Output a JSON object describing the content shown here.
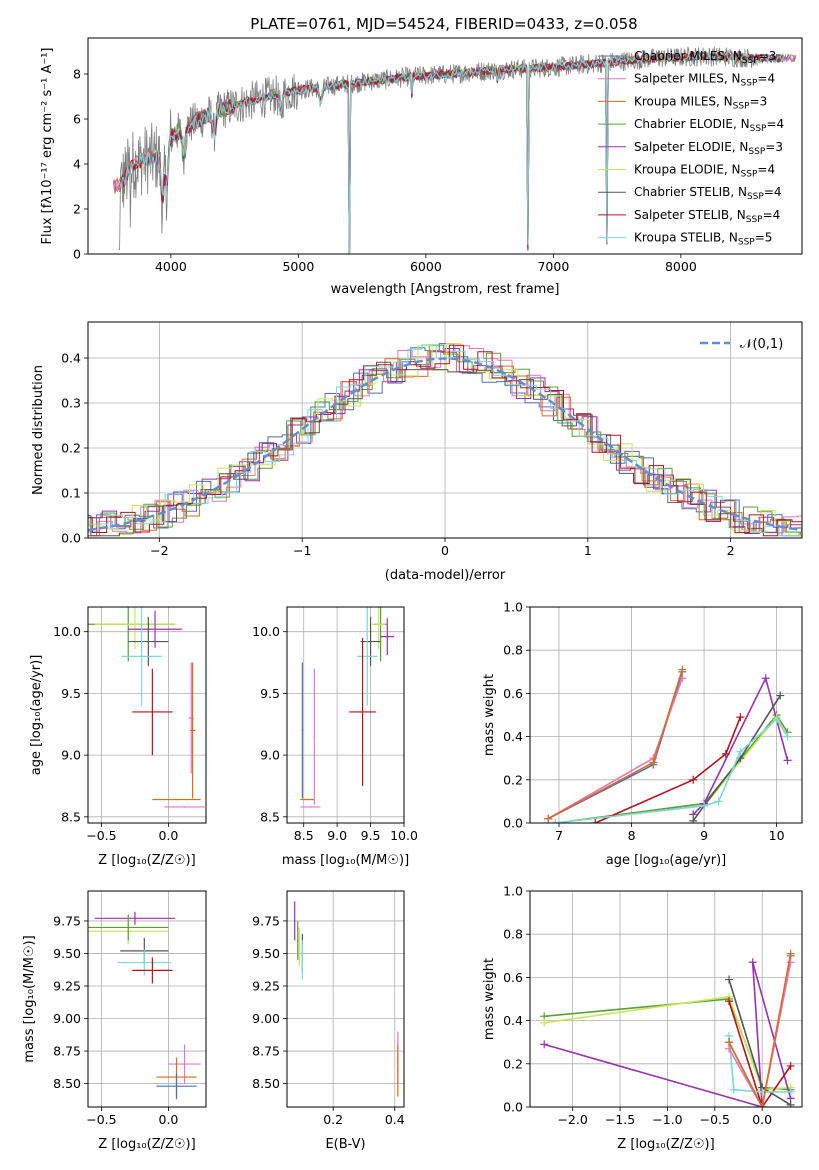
{
  "figure_title": "PLATE=0761, MJD=54524, FIBERID=0433, z=0.058",
  "colors": {
    "Chabrier MILES": "#4c72b0",
    "Salpeter MILES": "#e377c2",
    "Kroupa MILES": "#dd6b20",
    "Chabrier ELODIE": "#5a9e3a",
    "Salpeter ELODIE": "#9b30b0",
    "Kroupa ELODIE": "#c8e65a",
    "Chabrier STELIB": "#555555",
    "Salpeter STELIB": "#b5121b",
    "Kroupa STELIB": "#7fd8d8",
    "data": "#808080",
    "normal": "#5b8fd6"
  },
  "chart_data": [
    {
      "id": "spectrum",
      "type": "line",
      "title": "PLATE=0761, MJD=54524, FIBERID=0433, z=0.058",
      "xlabel": "wavelength [Angstrom, rest frame]",
      "ylabel": "Flux [f_λ 10^-17 erg cm^-2 s^-1 A^-1]",
      "xlim": [
        3350,
        8950
      ],
      "ylim": [
        0,
        9.6
      ],
      "xticks": [
        4000,
        5000,
        6000,
        7000,
        8000
      ],
      "yticks": [
        0,
        2,
        4,
        6,
        8
      ],
      "legend": [
        "Chabrier MILES, N_SSP=3",
        "Salpeter MILES, N_SSP=4",
        "Kroupa MILES, N_SSP=3",
        "Chabrier ELODIE, N_SSP=4",
        "Salpeter ELODIE, N_SSP=3",
        "Kroupa ELODIE, N_SSP=4",
        "Chabrier STELIB, N_SSP=4",
        "Salpeter STELIB, N_SSP=4",
        "Kroupa STELIB, N_SSP=5"
      ],
      "legend_placement": "right",
      "series_anchors": {
        "x": [
          3600,
          3700,
          3800,
          3900,
          4000,
          4100,
          4300,
          4500,
          4700,
          5000,
          5300,
          5600,
          5900,
          6200,
          6600,
          7000,
          7400,
          7800,
          8200,
          8600
        ],
        "y": [
          3.0,
          4.0,
          4.2,
          4.3,
          5.2,
          5.6,
          6.2,
          6.6,
          6.9,
          7.3,
          7.5,
          7.7,
          7.9,
          8.0,
          8.2,
          8.3,
          8.5,
          8.7,
          8.8,
          8.7
        ]
      }
    },
    {
      "id": "residuals",
      "type": "step",
      "xlabel": "(data-model)/error",
      "ylabel": "Normed distribution",
      "xlim": [
        -2.5,
        2.5
      ],
      "ylim": [
        0,
        0.48
      ],
      "xticks": [
        -2,
        -1,
        0,
        1,
        2
      ],
      "yticks": [
        0.0,
        0.1,
        0.2,
        0.3,
        0.4
      ],
      "grid": true,
      "legend": [
        "𝒩(0,1)"
      ],
      "legend_placement": "top-right",
      "bin_width": 0.1
    },
    {
      "id": "age_vs_Z",
      "type": "errorbar",
      "xlabel": "Z [log10(Z/Z☉)]",
      "ylabel": "age  [log10(age/yr)]",
      "xlim": [
        -0.6,
        0.28
      ],
      "ylim": [
        8.45,
        10.2
      ],
      "xticks": [
        -0.5,
        0.0
      ],
      "yticks": [
        8.5,
        9.0,
        9.5,
        10.0
      ],
      "grid": true,
      "points": [
        {
          "series": "Chabrier ELODIE",
          "x": -0.3,
          "y": 10.06,
          "xerr": 0.35,
          "yerr": 0.3
        },
        {
          "series": "Kroupa ELODIE",
          "x": -0.25,
          "y": 10.06,
          "xerr": 0.3,
          "yerr": 0.2
        },
        {
          "series": "Salpeter ELODIE",
          "x": -0.1,
          "y": 10.02,
          "xerr": 0.2,
          "yerr": 0.15
        },
        {
          "series": "Chabrier STELIB",
          "x": -0.15,
          "y": 9.92,
          "xerr": 0.15,
          "yerr": 0.2
        },
        {
          "series": "Kroupa STELIB",
          "x": -0.2,
          "y": 9.8,
          "xerr": 0.15,
          "yerr": 0.4
        },
        {
          "series": "Salpeter STELIB",
          "x": -0.12,
          "y": 9.35,
          "xerr": 0.15,
          "yerr": 0.35
        },
        {
          "series": "Salpeter MILES",
          "x": 0.17,
          "y": 9.3,
          "xerr": 0.02,
          "yerr": 0.45
        },
        {
          "series": "Kroupa MILES",
          "x": 0.18,
          "y": 9.2,
          "xerr": 0.02,
          "yerr": 0.55
        },
        {
          "series": "Kroupa MILES",
          "x": 0.06,
          "y": 8.64,
          "xerr": 0.18,
          "yerr": 0.0
        },
        {
          "series": "Salpeter MILES",
          "x": 0.12,
          "y": 8.58,
          "xerr": 0.15,
          "yerr": 0.0
        }
      ]
    },
    {
      "id": "age_vs_mass",
      "type": "errorbar",
      "xlabel": "mass [log10(M/M☉)]",
      "xlim": [
        8.25,
        10.0
      ],
      "ylim": [
        8.45,
        10.2
      ],
      "xticks": [
        8.5,
        9.0,
        9.5,
        10.0
      ],
      "yticks": [
        8.5,
        9.0,
        9.5,
        10.0
      ],
      "grid": true,
      "points": [
        {
          "series": "Chabrier MILES",
          "x": 8.48,
          "y": 9.2,
          "xerr": 0.0,
          "yerr": 0.55
        },
        {
          "series": "Salpeter MILES",
          "x": 8.66,
          "y": 9.15,
          "xerr": 0.0,
          "yerr": 0.55
        },
        {
          "series": "Kroupa MILES",
          "x": 8.55,
          "y": 8.64,
          "xerr": 0.1,
          "yerr": 0.0
        },
        {
          "series": "Salpeter MILES",
          "x": 8.6,
          "y": 8.58,
          "xerr": 0.15,
          "yerr": 0.0
        },
        {
          "series": "Chabrier ELODIE",
          "x": 9.65,
          "y": 10.06,
          "xerr": 0.1,
          "yerr": 0.3
        },
        {
          "series": "Kroupa ELODIE",
          "x": 9.62,
          "y": 10.06,
          "xerr": 0.1,
          "yerr": 0.2
        },
        {
          "series": "Salpeter ELODIE",
          "x": 9.75,
          "y": 9.96,
          "xerr": 0.1,
          "yerr": 0.15
        },
        {
          "series": "Chabrier STELIB",
          "x": 9.5,
          "y": 9.92,
          "xerr": 0.15,
          "yerr": 0.2
        },
        {
          "series": "Kroupa STELIB",
          "x": 9.45,
          "y": 9.8,
          "xerr": 0.15,
          "yerr": 0.4
        },
        {
          "series": "Salpeter STELIB",
          "x": 9.38,
          "y": 9.35,
          "xerr": 0.2,
          "yerr": 0.6
        }
      ]
    },
    {
      "id": "massweight_vs_age",
      "type": "line",
      "xlabel": "age  [log10(age/yr)]",
      "ylabel": "mass weight",
      "xlim": [
        6.6,
        10.35
      ],
      "ylim": [
        0,
        1.0
      ],
      "xticks": [
        7,
        8,
        9,
        10
      ],
      "yticks": [
        0.0,
        0.2,
        0.4,
        0.6,
        0.8,
        1.0
      ],
      "grid": true,
      "series": [
        {
          "name": "Chabrier MILES",
          "x": [
            6.85,
            8.3,
            8.7
          ],
          "y": [
            0.02,
            0.27,
            0.7
          ]
        },
        {
          "name": "Salpeter MILES",
          "x": [
            6.85,
            8.3,
            8.7
          ],
          "y": [
            0.02,
            0.3,
            0.67
          ]
        },
        {
          "name": "Kroupa MILES",
          "x": [
            6.85,
            8.3,
            8.7
          ],
          "y": [
            0.02,
            0.28,
            0.71
          ]
        },
        {
          "name": "Chabrier ELODIE",
          "x": [
            6.95,
            9.0,
            10.0,
            10.15
          ],
          "y": [
            0.0,
            0.09,
            0.5,
            0.42
          ]
        },
        {
          "name": "Salpeter ELODIE",
          "x": [
            8.85,
            9.0,
            9.85,
            10.15
          ],
          "y": [
            0.04,
            0.09,
            0.67,
            0.29
          ]
        },
        {
          "name": "Kroupa ELODIE",
          "x": [
            6.95,
            9.0,
            10.0,
            10.15
          ],
          "y": [
            0.0,
            0.08,
            0.49,
            0.4
          ]
        },
        {
          "name": "Chabrier STELIB",
          "x": [
            8.85,
            9.0,
            9.5,
            10.05
          ],
          "y": [
            0.01,
            0.08,
            0.3,
            0.59
          ]
        },
        {
          "name": "Salpeter STELIB",
          "x": [
            7.5,
            8.85,
            9.3,
            9.5
          ],
          "y": [
            0.0,
            0.2,
            0.32,
            0.49
          ]
        },
        {
          "name": "Kroupa STELIB",
          "x": [
            6.95,
            9.0,
            9.2,
            9.5,
            10.0,
            10.15
          ],
          "y": [
            0.0,
            0.08,
            0.1,
            0.33,
            0.48,
            0.4
          ]
        }
      ]
    },
    {
      "id": "mass_vs_Z",
      "type": "errorbar",
      "xlabel": "Z [log10(Z/Z☉)]",
      "ylabel": "mass [log10(M/M☉)]",
      "xlim": [
        -0.6,
        0.28
      ],
      "ylim": [
        8.32,
        9.98
      ],
      "xticks": [
        -0.5,
        0.0
      ],
      "yticks": [
        8.5,
        8.75,
        9.0,
        9.25,
        9.5,
        9.75
      ],
      "grid": true,
      "points": [
        {
          "series": "Salpeter ELODIE",
          "x": -0.25,
          "y": 9.77,
          "xerr": 0.3,
          "yerr": 0.05
        },
        {
          "series": "Kroupa ELODIE",
          "x": -0.3,
          "y": 9.67,
          "xerr": 0.3,
          "yerr": 0.1
        },
        {
          "series": "Chabrier ELODIE",
          "x": -0.3,
          "y": 9.7,
          "xerr": 0.3,
          "yerr": 0.1
        },
        {
          "series": "Chabrier STELIB",
          "x": -0.18,
          "y": 9.52,
          "xerr": 0.18,
          "yerr": 0.1
        },
        {
          "series": "Kroupa STELIB",
          "x": -0.18,
          "y": 9.43,
          "xerr": 0.2,
          "yerr": 0.1
        },
        {
          "series": "Salpeter STELIB",
          "x": -0.12,
          "y": 9.37,
          "xerr": 0.15,
          "yerr": 0.1
        },
        {
          "series": "Salpeter MILES",
          "x": 0.12,
          "y": 8.65,
          "xerr": 0.12,
          "yerr": 0.15
        },
        {
          "series": "Kroupa MILES",
          "x": 0.06,
          "y": 8.55,
          "xerr": 0.15,
          "yerr": 0.15
        },
        {
          "series": "Chabrier MILES",
          "x": 0.06,
          "y": 8.48,
          "xerr": 0.15,
          "yerr": 0.1
        }
      ]
    },
    {
      "id": "mass_vs_ebv",
      "type": "errorbar",
      "xlabel": "E(B-V)",
      "xlim": [
        0.05,
        0.43
      ],
      "ylim": [
        8.32,
        9.98
      ],
      "xticks": [
        0.2,
        0.4
      ],
      "yticks": [
        8.5,
        8.75,
        9.0,
        9.25,
        9.5,
        9.75
      ],
      "grid": true,
      "points": [
        {
          "series": "Salpeter ELODIE",
          "x": 0.075,
          "y": 9.75,
          "xerr": 0.0,
          "yerr": 0.15
        },
        {
          "series": "Chabrier ELODIE",
          "x": 0.085,
          "y": 9.6,
          "xerr": 0.0,
          "yerr": 0.15
        },
        {
          "series": "Kroupa ELODIE",
          "x": 0.09,
          "y": 9.55,
          "xerr": 0.0,
          "yerr": 0.15
        },
        {
          "series": "Chabrier STELIB",
          "x": 0.1,
          "y": 9.5,
          "xerr": 0.0,
          "yerr": 0.15
        },
        {
          "series": "Kroupa STELIB",
          "x": 0.1,
          "y": 9.45,
          "xerr": 0.0,
          "yerr": 0.15
        },
        {
          "series": "Salpeter MILES",
          "x": 0.41,
          "y": 8.7,
          "xerr": 0.0,
          "yerr": 0.2
        },
        {
          "series": "Kroupa MILES",
          "x": 0.41,
          "y": 8.6,
          "xerr": 0.0,
          "yerr": 0.2
        }
      ]
    },
    {
      "id": "massweight_vs_Z",
      "type": "line",
      "xlabel": "Z [log10(Z/Z☉)]",
      "ylabel": "mass weight",
      "xlim": [
        -2.45,
        0.42
      ],
      "ylim": [
        0,
        1.0
      ],
      "xticks": [
        -2.0,
        -1.5,
        -1.0,
        -0.5,
        0.0
      ],
      "yticks": [
        0.0,
        0.2,
        0.4,
        0.6,
        0.8,
        1.0
      ],
      "grid": true,
      "series": [
        {
          "name": "Chabrier ELODIE",
          "x": [
            -2.3,
            -0.35,
            0.0,
            0.3
          ],
          "y": [
            0.42,
            0.5,
            0.09,
            0.08
          ]
        },
        {
          "name": "Kroupa ELODIE",
          "x": [
            -2.3,
            -0.35,
            0.0,
            0.3
          ],
          "y": [
            0.39,
            0.51,
            0.08,
            0.09
          ]
        },
        {
          "name": "Salpeter ELODIE",
          "x": [
            -2.3,
            0.0,
            -0.1,
            0.3
          ],
          "y": [
            0.29,
            0.0,
            0.67,
            0.04
          ]
        },
        {
          "name": "Chabrier STELIB",
          "x": [
            -0.35,
            0.0,
            0.3
          ],
          "y": [
            0.59,
            0.09,
            0.01
          ]
        },
        {
          "name": "Salpeter STELIB",
          "x": [
            -0.35,
            0.0,
            0.3
          ],
          "y": [
            0.49,
            0.0,
            0.19
          ]
        },
        {
          "name": "Kroupa STELIB",
          "x": [
            -0.35,
            -0.3,
            0.0,
            0.3
          ],
          "y": [
            0.33,
            0.08,
            0.07,
            0.07
          ]
        },
        {
          "name": "Chabrier MILES",
          "x": [
            -0.35,
            0.0,
            0.3
          ],
          "y": [
            0.3,
            0.0,
            0.7
          ]
        },
        {
          "name": "Salpeter MILES",
          "x": [
            -0.35,
            0.0,
            0.3
          ],
          "y": [
            0.27,
            0.0,
            0.67
          ]
        },
        {
          "name": "Kroupa MILES",
          "x": [
            -0.35,
            0.0,
            0.3
          ],
          "y": [
            0.3,
            0.0,
            0.71
          ]
        }
      ]
    }
  ]
}
